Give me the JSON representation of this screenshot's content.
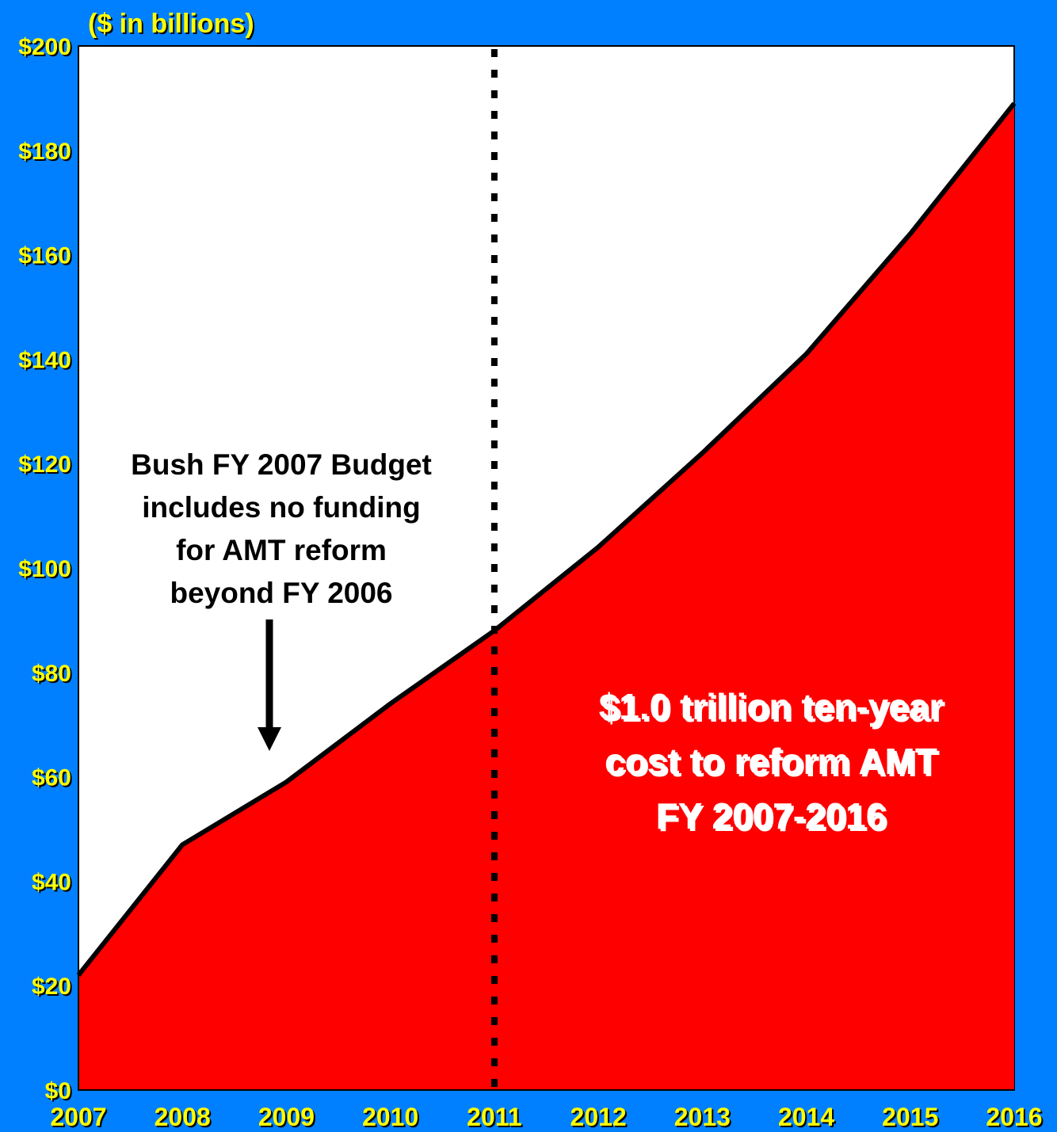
{
  "chart_data": {
    "type": "area",
    "unit_label": "($ in billions)",
    "x": [
      "2007",
      "2008",
      "2009",
      "2010",
      "2011",
      "2012",
      "2013",
      "2014",
      "2015",
      "2016"
    ],
    "values": [
      22,
      47,
      59,
      74,
      88,
      104,
      122,
      141,
      164,
      189
    ],
    "ylim": [
      0,
      200
    ],
    "y_ticks": [
      "$0",
      "$20",
      "$40",
      "$60",
      "$80",
      "$100",
      "$120",
      "$140",
      "$160",
      "$180",
      "$200"
    ],
    "grid": false,
    "divider_at": "2011",
    "annotations": {
      "budget_note": [
        "Bush FY 2007 Budget",
        "includes no funding",
        "for AMT reform",
        "beyond FY 2006"
      ],
      "cost_note": [
        "$1.0 trillion ten-year",
        "cost to reform AMT",
        "FY 2007-2016"
      ]
    },
    "colors": {
      "background": "#0080ff",
      "plot_area": "#ffffff",
      "area_fill": "#ff0000",
      "line": "#000000",
      "tick_text": "#ffff00",
      "cost_text": "#ffffff"
    }
  }
}
